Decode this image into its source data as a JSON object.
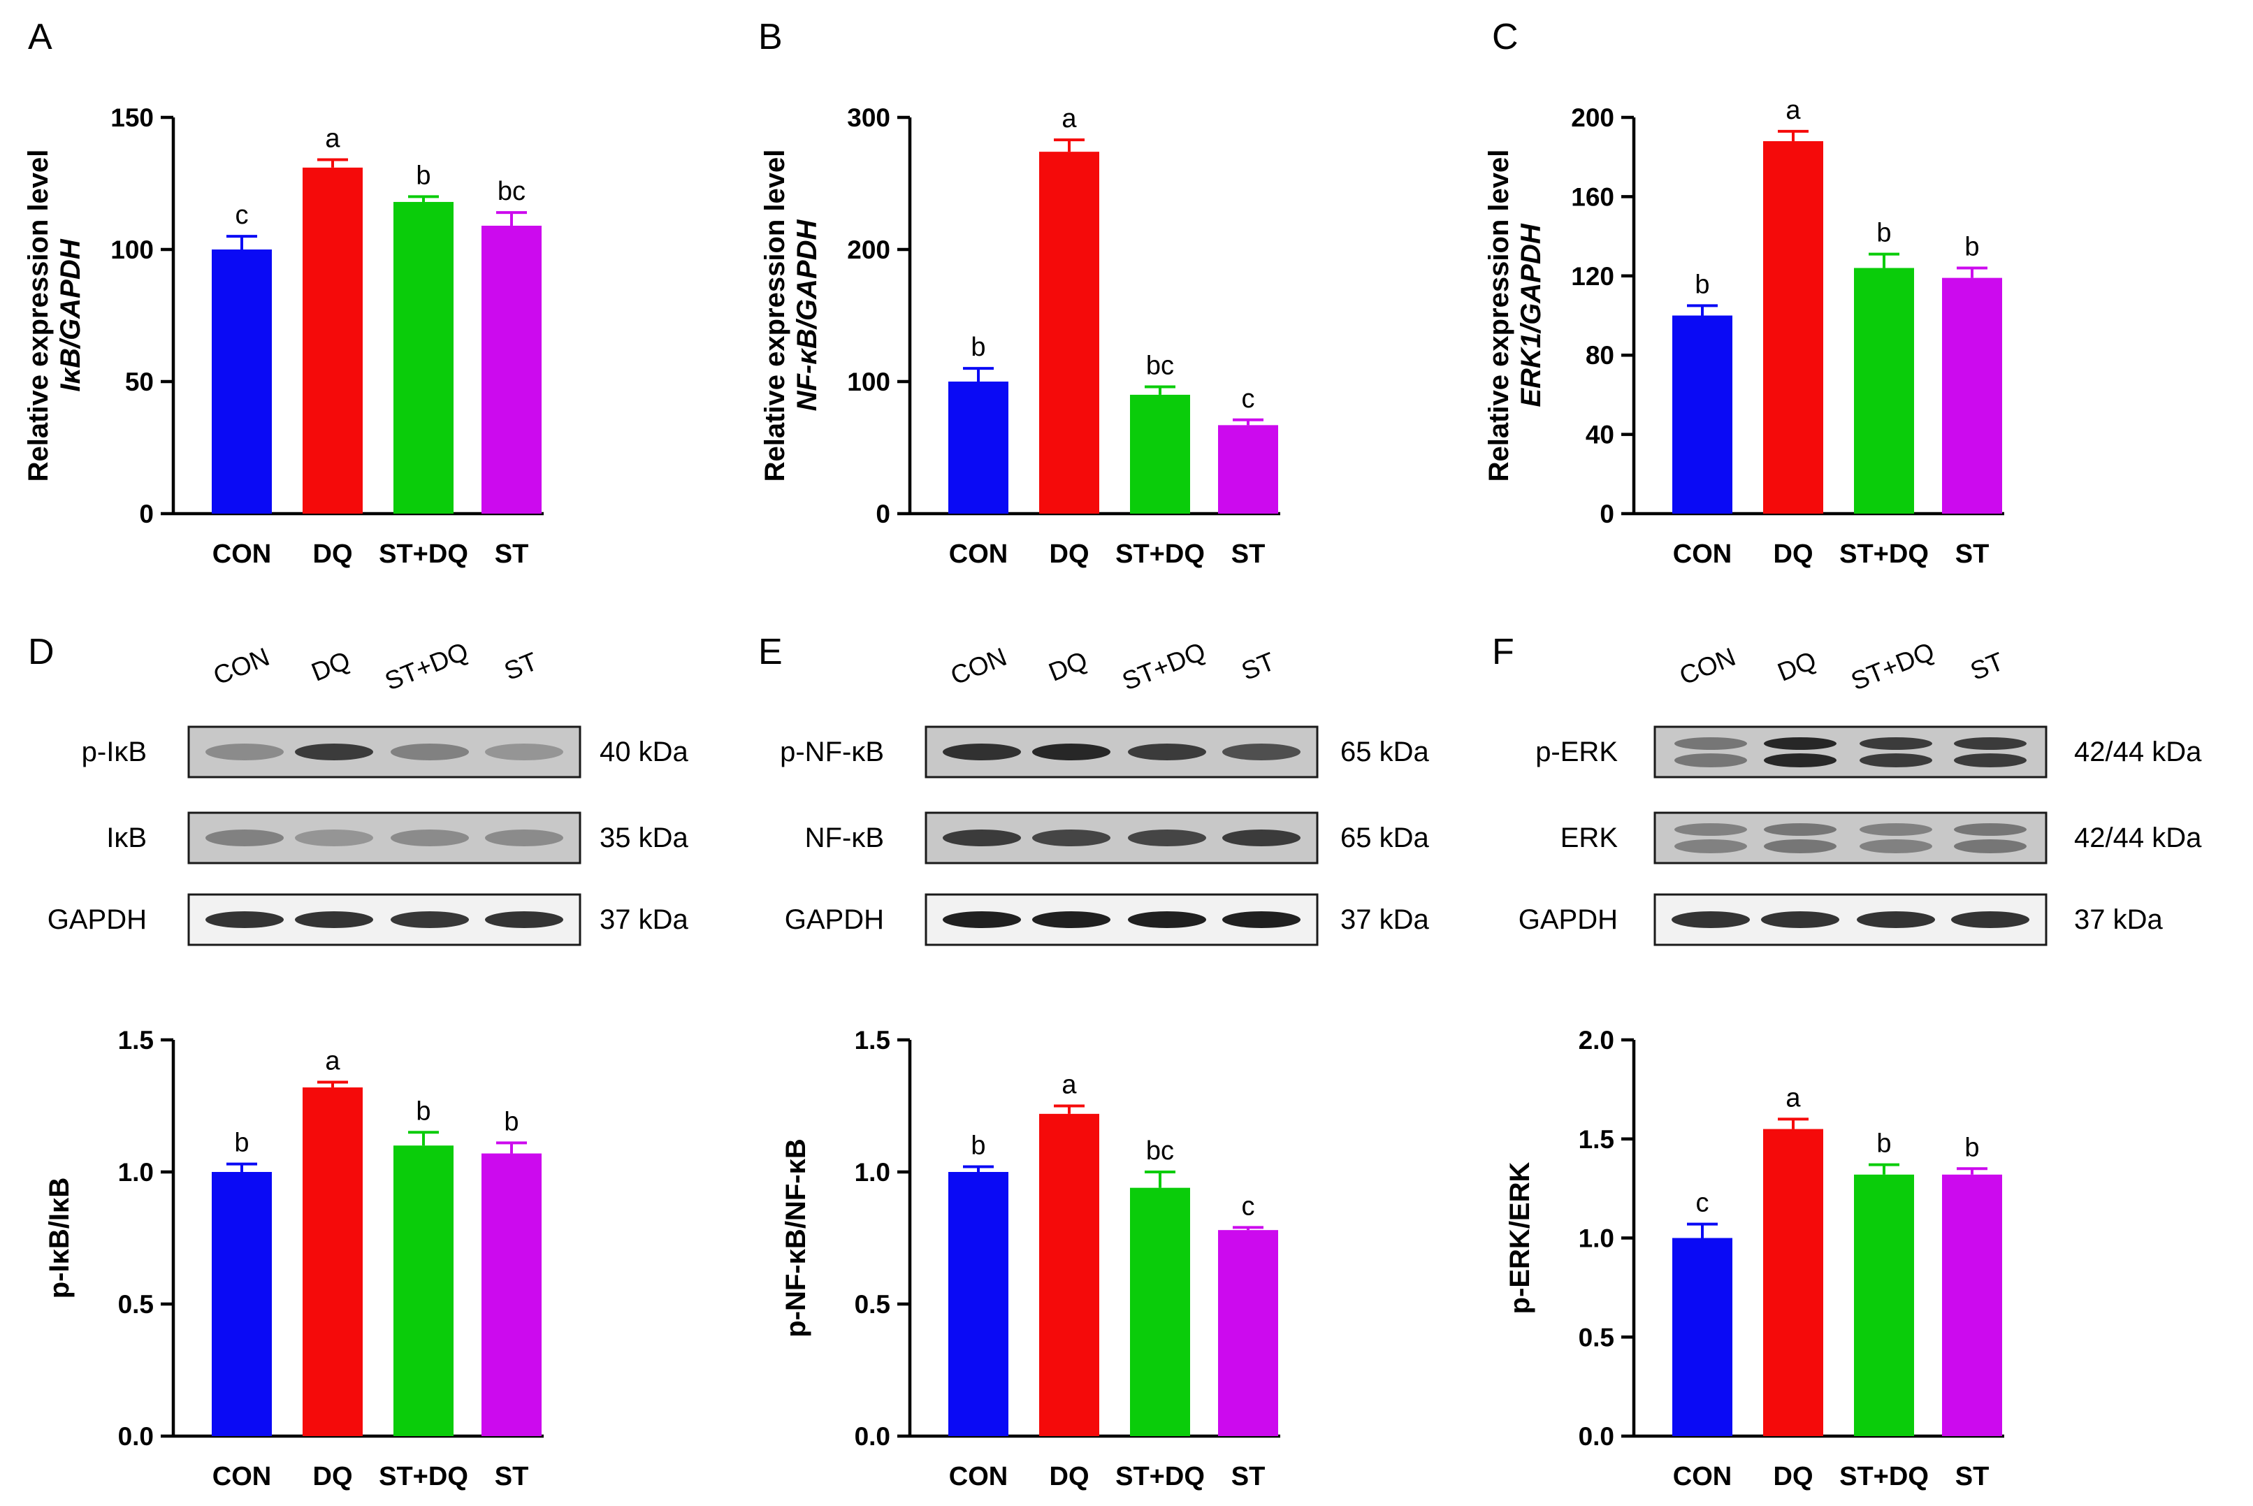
{
  "colors": {
    "CON": "#0a0af5",
    "DQ": "#f50a0a",
    "ST+DQ": "#0acc0a",
    "ST": "#cc0aee",
    "axis": "#000000"
  },
  "groups": [
    "CON",
    "DQ",
    "ST+DQ",
    "ST"
  ],
  "bar_panels": [
    {
      "letter": "A",
      "ylabel1": "Relative expression level",
      "ylabel2": "IκB/GAPDH",
      "ylim": [
        0,
        150
      ],
      "ticks": [
        0,
        50,
        100,
        150
      ],
      "tick_labels": [
        "0",
        "50",
        "100",
        "150"
      ],
      "values": [
        100,
        131,
        118,
        109
      ],
      "errors": [
        5,
        3,
        2,
        5
      ],
      "sig": [
        "c",
        "a",
        "b",
        "bc"
      ]
    },
    {
      "letter": "B",
      "ylabel1": "Relative expression level",
      "ylabel2": "NF-κB/GAPDH",
      "ylim": [
        0,
        300
      ],
      "ticks": [
        0,
        100,
        200,
        300
      ],
      "tick_labels": [
        "0",
        "100",
        "200",
        "300"
      ],
      "values": [
        100,
        274,
        90,
        67
      ],
      "errors": [
        10,
        9,
        6,
        4
      ],
      "sig": [
        "b",
        "a",
        "bc",
        "c"
      ]
    },
    {
      "letter": "C",
      "ylabel1": "Relative expression level",
      "ylabel2": "ERK1/GAPDH",
      "ylim": [
        0,
        200
      ],
      "ticks": [
        0,
        40,
        80,
        120,
        160,
        200
      ],
      "tick_labels": [
        "0",
        "40",
        "80",
        "120",
        "160",
        "200"
      ],
      "values": [
        100,
        188,
        124,
        119
      ],
      "errors": [
        5,
        5,
        7,
        5
      ],
      "sig": [
        "b",
        "a",
        "b",
        "b"
      ]
    },
    {
      "letter": "",
      "ylabel1": "p-IκB/IκB",
      "ylabel2": "",
      "ylim": [
        0,
        1.5
      ],
      "ticks": [
        0,
        0.5,
        1,
        1.5
      ],
      "tick_labels": [
        "0.0",
        "0.5",
        "1.0",
        "1.5"
      ],
      "values": [
        1.0,
        1.32,
        1.1,
        1.07
      ],
      "errors": [
        0.03,
        0.02,
        0.05,
        0.04
      ],
      "sig": [
        "b",
        "a",
        "b",
        "b"
      ]
    },
    {
      "letter": "",
      "ylabel1": "p-NF-κB/NF-κB",
      "ylabel2": "",
      "ylim": [
        0,
        1.5
      ],
      "ticks": [
        0,
        0.5,
        1,
        1.5
      ],
      "tick_labels": [
        "0.0",
        "0.5",
        "1.0",
        "1.5"
      ],
      "values": [
        1.0,
        1.22,
        0.94,
        0.78
      ],
      "errors": [
        0.02,
        0.03,
        0.06,
        0.01
      ],
      "sig": [
        "b",
        "a",
        "bc",
        "c"
      ]
    },
    {
      "letter": "",
      "ylabel1": "p-ERK/ERK",
      "ylabel2": "",
      "ylim": [
        0,
        2.0
      ],
      "ticks": [
        0,
        0.5,
        1,
        1.5,
        2
      ],
      "tick_labels": [
        "0.0",
        "0.5",
        "1.0",
        "1.5",
        "2.0"
      ],
      "values": [
        1.0,
        1.55,
        1.32,
        1.32
      ],
      "errors": [
        0.07,
        0.05,
        0.05,
        0.03
      ],
      "sig": [
        "c",
        "a",
        "b",
        "b"
      ]
    }
  ],
  "blot_panels": [
    {
      "letter": "D",
      "rows": [
        {
          "label": "p-IκB",
          "kda": "40 kDa",
          "intensity": [
            0.45,
            0.85,
            0.5,
            0.4
          ],
          "doublet": false
        },
        {
          "label": "IκB",
          "kda": "35 kDa",
          "intensity": [
            0.5,
            0.4,
            0.45,
            0.45
          ],
          "doublet": false
        },
        {
          "label": "GAPDH",
          "kda": "37 kDa",
          "intensity": [
            0.9,
            0.9,
            0.88,
            0.9
          ],
          "doublet": false
        }
      ]
    },
    {
      "letter": "E",
      "rows": [
        {
          "label": "p-NF-κB",
          "kda": "65 kDa",
          "intensity": [
            0.9,
            0.95,
            0.85,
            0.75
          ],
          "doublet": false
        },
        {
          "label": "NF-κB",
          "kda": "65 kDa",
          "intensity": [
            0.85,
            0.8,
            0.8,
            0.85
          ],
          "doublet": false
        },
        {
          "label": "GAPDH",
          "kda": "37 kDa",
          "intensity": [
            1,
            1,
            1,
            1
          ],
          "doublet": false
        }
      ]
    },
    {
      "letter": "F",
      "rows": [
        {
          "label": "p-ERK",
          "kda": "42/44 kDa",
          "intensity": [
            0.55,
            0.95,
            0.85,
            0.85
          ],
          "doublet": true
        },
        {
          "label": "ERK",
          "kda": "42/44 kDa",
          "intensity": [
            0.5,
            0.55,
            0.5,
            0.55
          ],
          "doublet": true
        },
        {
          "label": "GAPDH",
          "kda": "37 kDa",
          "intensity": [
            0.9,
            0.9,
            0.9,
            0.9
          ],
          "doublet": false
        }
      ]
    }
  ],
  "chart_data": [
    {
      "type": "bar",
      "panel": "A",
      "title": "",
      "xlabel": "",
      "ylabel": "Relative expression level IκB/GAPDH",
      "categories": [
        "CON",
        "DQ",
        "ST+DQ",
        "ST"
      ],
      "values": [
        100,
        131,
        118,
        109
      ],
      "errors": [
        5,
        3,
        2,
        5
      ],
      "significance": [
        "c",
        "a",
        "b",
        "bc"
      ],
      "ylim": [
        0,
        150
      ]
    },
    {
      "type": "bar",
      "panel": "B",
      "title": "",
      "xlabel": "",
      "ylabel": "Relative expression level NF-κB/GAPDH",
      "categories": [
        "CON",
        "DQ",
        "ST+DQ",
        "ST"
      ],
      "values": [
        100,
        274,
        90,
        67
      ],
      "errors": [
        10,
        9,
        6,
        4
      ],
      "significance": [
        "b",
        "a",
        "bc",
        "c"
      ],
      "ylim": [
        0,
        300
      ]
    },
    {
      "type": "bar",
      "panel": "C",
      "title": "",
      "xlabel": "",
      "ylabel": "Relative expression level ERK1/GAPDH",
      "categories": [
        "CON",
        "DQ",
        "ST+DQ",
        "ST"
      ],
      "values": [
        100,
        188,
        124,
        119
      ],
      "errors": [
        5,
        5,
        7,
        5
      ],
      "significance": [
        "b",
        "a",
        "b",
        "b"
      ],
      "ylim": [
        0,
        200
      ]
    },
    {
      "type": "bar",
      "panel": "D",
      "title": "",
      "xlabel": "",
      "ylabel": "p-IκB/IκB",
      "categories": [
        "CON",
        "DQ",
        "ST+DQ",
        "ST"
      ],
      "values": [
        1.0,
        1.32,
        1.1,
        1.07
      ],
      "errors": [
        0.03,
        0.02,
        0.05,
        0.04
      ],
      "significance": [
        "b",
        "a",
        "b",
        "b"
      ],
      "ylim": [
        0,
        1.5
      ]
    },
    {
      "type": "bar",
      "panel": "E",
      "title": "",
      "xlabel": "",
      "ylabel": "p-NF-κB/NF-κB",
      "categories": [
        "CON",
        "DQ",
        "ST+DQ",
        "ST"
      ],
      "values": [
        1.0,
        1.22,
        0.94,
        0.78
      ],
      "errors": [
        0.02,
        0.03,
        0.06,
        0.01
      ],
      "significance": [
        "b",
        "a",
        "bc",
        "c"
      ],
      "ylim": [
        0,
        1.5
      ]
    },
    {
      "type": "bar",
      "panel": "F",
      "title": "",
      "xlabel": "",
      "ylabel": "p-ERK/ERK",
      "categories": [
        "CON",
        "DQ",
        "ST+DQ",
        "ST"
      ],
      "values": [
        1.0,
        1.55,
        1.32,
        1.32
      ],
      "errors": [
        0.07,
        0.05,
        0.05,
        0.03
      ],
      "significance": [
        "c",
        "a",
        "b",
        "b"
      ],
      "ylim": [
        0,
        2.0
      ]
    }
  ]
}
